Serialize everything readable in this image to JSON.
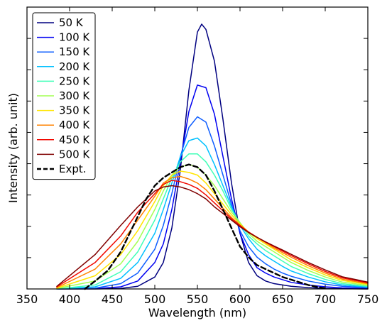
{
  "chart_data": {
    "type": "line",
    "title": "",
    "xlabel": "Wavelength (nm)",
    "ylabel": "Intensity (arb. unit)",
    "xlim": [
      350,
      750
    ],
    "ylim": [
      0,
      1.0
    ],
    "x_ticks": [
      350,
      400,
      450,
      500,
      550,
      600,
      650,
      700,
      750
    ],
    "y_tick_labels_shown": false,
    "grid": false,
    "legend_position": "top-left",
    "series": [
      {
        "name": "50 K",
        "color": "#000080",
        "style": "solid",
        "x": [
          385,
          430,
          460,
          480,
          500,
          510,
          520,
          530,
          540,
          550,
          555,
          560,
          570,
          580,
          590,
          600,
          610,
          620,
          630,
          640,
          650,
          660,
          680,
          700,
          720,
          750
        ],
        "y": [
          0,
          0,
          0.002,
          0.01,
          0.045,
          0.1,
          0.23,
          0.45,
          0.75,
          0.97,
          1.0,
          0.98,
          0.86,
          0.64,
          0.4,
          0.21,
          0.1,
          0.05,
          0.03,
          0.02,
          0.015,
          0.01,
          0.005,
          0.002,
          0.001,
          0
        ]
      },
      {
        "name": "100 K",
        "color": "#0000f1",
        "style": "solid",
        "x": [
          385,
          430,
          460,
          480,
          500,
          510,
          520,
          530,
          540,
          550,
          560,
          570,
          580,
          590,
          600,
          610,
          620,
          630,
          640,
          650,
          660,
          680,
          700,
          720,
          750
        ],
        "y": [
          0,
          0.001,
          0.008,
          0.03,
          0.1,
          0.17,
          0.3,
          0.48,
          0.67,
          0.77,
          0.76,
          0.66,
          0.5,
          0.34,
          0.21,
          0.13,
          0.08,
          0.06,
          0.045,
          0.035,
          0.025,
          0.015,
          0.008,
          0.004,
          0.002
        ]
      },
      {
        "name": "150 K",
        "color": "#0d5dff",
        "style": "solid",
        "x": [
          385,
          430,
          460,
          480,
          500,
          510,
          520,
          530,
          540,
          550,
          560,
          570,
          580,
          590,
          600,
          610,
          620,
          630,
          640,
          650,
          660,
          680,
          700,
          720,
          750
        ],
        "y": [
          0,
          0.003,
          0.02,
          0.06,
          0.15,
          0.24,
          0.36,
          0.5,
          0.61,
          0.65,
          0.63,
          0.54,
          0.43,
          0.32,
          0.22,
          0.16,
          0.12,
          0.095,
          0.075,
          0.06,
          0.048,
          0.03,
          0.018,
          0.01,
          0.005
        ]
      },
      {
        "name": "200 K",
        "color": "#00c0ff",
        "style": "solid",
        "x": [
          385,
          430,
          460,
          480,
          500,
          510,
          520,
          530,
          540,
          550,
          560,
          570,
          580,
          590,
          600,
          610,
          620,
          630,
          640,
          650,
          660,
          680,
          700,
          720,
          750
        ],
        "y": [
          0,
          0.008,
          0.04,
          0.1,
          0.21,
          0.3,
          0.4,
          0.5,
          0.56,
          0.57,
          0.54,
          0.47,
          0.39,
          0.31,
          0.24,
          0.19,
          0.15,
          0.125,
          0.105,
          0.085,
          0.068,
          0.045,
          0.027,
          0.015,
          0.007
        ]
      },
      {
        "name": "250 K",
        "color": "#40ffb7",
        "style": "solid",
        "x": [
          385,
          430,
          460,
          480,
          500,
          510,
          520,
          530,
          540,
          550,
          560,
          570,
          580,
          590,
          600,
          610,
          620,
          630,
          640,
          650,
          660,
          680,
          700,
          720,
          750
        ],
        "y": [
          0,
          0.015,
          0.065,
          0.14,
          0.26,
          0.34,
          0.42,
          0.48,
          0.51,
          0.51,
          0.48,
          0.43,
          0.37,
          0.3,
          0.25,
          0.2,
          0.17,
          0.145,
          0.125,
          0.105,
          0.085,
          0.058,
          0.036,
          0.02,
          0.01
        ]
      },
      {
        "name": "300 K",
        "color": "#a4ff53",
        "style": "solid",
        "x": [
          385,
          430,
          460,
          480,
          500,
          510,
          520,
          530,
          540,
          550,
          560,
          570,
          580,
          590,
          600,
          610,
          620,
          630,
          640,
          650,
          660,
          680,
          700,
          720,
          750
        ],
        "y": [
          0.002,
          0.03,
          0.095,
          0.18,
          0.3,
          0.37,
          0.43,
          0.46,
          0.47,
          0.46,
          0.43,
          0.39,
          0.34,
          0.29,
          0.25,
          0.21,
          0.18,
          0.16,
          0.14,
          0.12,
          0.1,
          0.07,
          0.045,
          0.026,
          0.013
        ]
      },
      {
        "name": "350 K",
        "color": "#ffe500",
        "style": "solid",
        "x": [
          385,
          430,
          460,
          480,
          500,
          510,
          520,
          530,
          540,
          550,
          560,
          570,
          580,
          590,
          600,
          610,
          620,
          630,
          640,
          650,
          660,
          680,
          700,
          720,
          750
        ],
        "y": [
          0.003,
          0.05,
          0.13,
          0.22,
          0.33,
          0.39,
          0.43,
          0.445,
          0.44,
          0.43,
          0.4,
          0.36,
          0.32,
          0.28,
          0.245,
          0.215,
          0.19,
          0.17,
          0.15,
          0.13,
          0.11,
          0.08,
          0.053,
          0.032,
          0.017
        ]
      },
      {
        "name": "400 K",
        "color": "#ff8200",
        "style": "solid",
        "x": [
          385,
          430,
          460,
          480,
          500,
          510,
          520,
          530,
          540,
          550,
          560,
          570,
          580,
          590,
          600,
          610,
          620,
          630,
          640,
          650,
          660,
          680,
          700,
          720,
          750
        ],
        "y": [
          0.005,
          0.075,
          0.17,
          0.26,
          0.35,
          0.4,
          0.42,
          0.425,
          0.415,
          0.4,
          0.375,
          0.34,
          0.305,
          0.27,
          0.24,
          0.215,
          0.195,
          0.175,
          0.155,
          0.137,
          0.12,
          0.088,
          0.06,
          0.037,
          0.02
        ]
      },
      {
        "name": "450 K",
        "color": "#f10800",
        "style": "solid",
        "x": [
          385,
          430,
          460,
          480,
          500,
          510,
          520,
          530,
          540,
          550,
          560,
          570,
          580,
          590,
          600,
          610,
          620,
          630,
          640,
          650,
          660,
          680,
          700,
          720,
          750
        ],
        "y": [
          0.008,
          0.1,
          0.2,
          0.29,
          0.36,
          0.395,
          0.41,
          0.405,
          0.395,
          0.38,
          0.355,
          0.325,
          0.295,
          0.265,
          0.24,
          0.215,
          0.195,
          0.177,
          0.16,
          0.143,
          0.126,
          0.095,
          0.066,
          0.042,
          0.023
        ]
      },
      {
        "name": "500 K",
        "color": "#800000",
        "style": "solid",
        "x": [
          385,
          430,
          460,
          480,
          500,
          510,
          520,
          530,
          540,
          550,
          560,
          570,
          580,
          590,
          600,
          610,
          620,
          630,
          640,
          650,
          660,
          680,
          700,
          720,
          750
        ],
        "y": [
          0.01,
          0.13,
          0.24,
          0.31,
          0.37,
          0.385,
          0.39,
          0.385,
          0.375,
          0.36,
          0.34,
          0.31,
          0.285,
          0.26,
          0.235,
          0.213,
          0.195,
          0.178,
          0.162,
          0.147,
          0.131,
          0.1,
          0.072,
          0.046,
          0.026
        ]
      },
      {
        "name": "Expt.",
        "color": "#000000",
        "style": "dashed",
        "x": [
          418,
          430,
          445,
          460,
          475,
          490,
          500,
          510,
          520,
          530,
          540,
          550,
          560,
          570,
          580,
          590,
          600,
          610,
          620,
          630,
          640,
          650,
          660,
          670,
          680,
          690,
          700
        ],
        "y": [
          0,
          0.03,
          0.07,
          0.14,
          0.24,
          0.34,
          0.39,
          0.42,
          0.44,
          0.46,
          0.47,
          0.46,
          0.43,
          0.37,
          0.3,
          0.23,
          0.16,
          0.12,
          0.09,
          0.075,
          0.06,
          0.045,
          0.035,
          0.025,
          0.015,
          0.008,
          0.002
        ]
      }
    ]
  }
}
